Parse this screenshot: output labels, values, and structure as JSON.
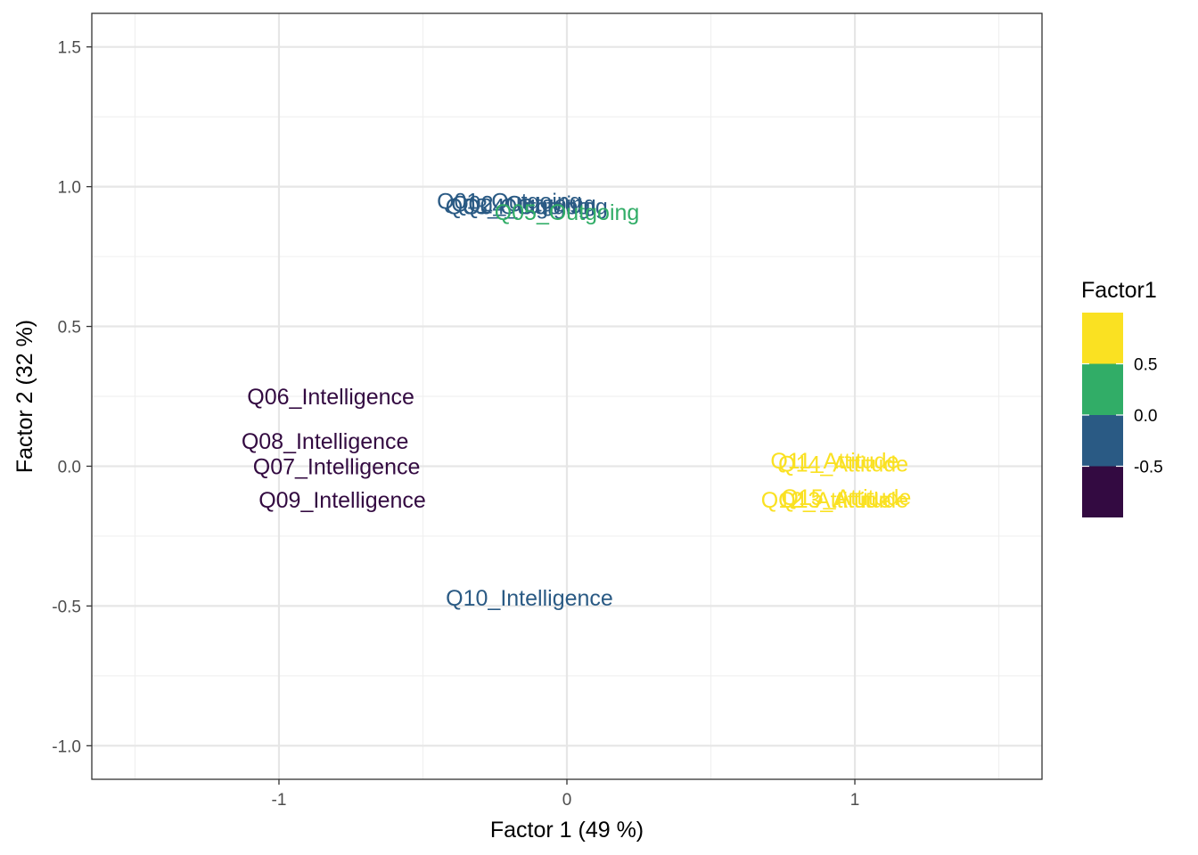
{
  "chart_data": {
    "type": "scatter",
    "title": "",
    "xlabel": "Factor 1 (49 %)",
    "ylabel": "Factor 2 (32 %)",
    "xlim": [
      -1.65,
      1.65
    ],
    "ylim": [
      -1.12,
      1.62
    ],
    "x_ticks": [
      -1,
      0,
      1
    ],
    "x_tick_labels": [
      "-1",
      "0",
      "1"
    ],
    "y_ticks": [
      -1.0,
      -0.5,
      0.0,
      0.5,
      1.0,
      1.5
    ],
    "y_tick_labels": [
      "-1.0",
      "-0.5",
      "0.0",
      "0.5",
      "1.0",
      "1.5"
    ],
    "grid": true,
    "color_scale": "viridis",
    "points": [
      {
        "label": "Q01_Outgoing",
        "x": -0.2,
        "y": 0.95,
        "color": "#2a5a84"
      },
      {
        "label": "Q02_Outgoing",
        "x": -0.15,
        "y": 0.94,
        "color": "#2a5a84"
      },
      {
        "label": "Q03_Outgoing",
        "x": -0.17,
        "y": 0.93,
        "color": "#2a5a84"
      },
      {
        "label": "Q04_Outgoing",
        "x": -0.11,
        "y": 0.93,
        "color": "#2a5a84"
      },
      {
        "label": "Q05_Outgoing",
        "x": 0.0,
        "y": 0.91,
        "color": "#31ad67"
      },
      {
        "label": "Q06_Intelligence",
        "x": -0.82,
        "y": 0.25,
        "color": "#330a41"
      },
      {
        "label": "Q07_Intelligence",
        "x": -0.8,
        "y": 0.0,
        "color": "#330a41"
      },
      {
        "label": "Q08_Intelligence",
        "x": -0.84,
        "y": 0.09,
        "color": "#330a41"
      },
      {
        "label": "Q09_Intelligence",
        "x": -0.78,
        "y": -0.12,
        "color": "#330a41"
      },
      {
        "label": "Q10_Intelligence",
        "x": -0.13,
        "y": -0.47,
        "color": "#2a5a84"
      },
      {
        "label": "Q11_Attitude",
        "x": 0.93,
        "y": 0.02,
        "color": "#fae122"
      },
      {
        "label": "Q12_Attitude",
        "x": 0.9,
        "y": -0.12,
        "color": "#fae122"
      },
      {
        "label": "Q13_Attitude",
        "x": 0.96,
        "y": -0.12,
        "color": "#fae122"
      },
      {
        "label": "Q14_Attitude",
        "x": 0.96,
        "y": 0.01,
        "color": "#fae122"
      },
      {
        "label": "Q15_Attitude",
        "x": 0.97,
        "y": -0.11,
        "color": "#fae122"
      }
    ],
    "legend": {
      "title": "Factor1",
      "placement": "right",
      "colors": [
        "#fae122",
        "#31ad67",
        "#2a5a84",
        "#330a41"
      ],
      "labels": [
        "0.5",
        "0.0",
        "-0.5"
      ]
    }
  }
}
